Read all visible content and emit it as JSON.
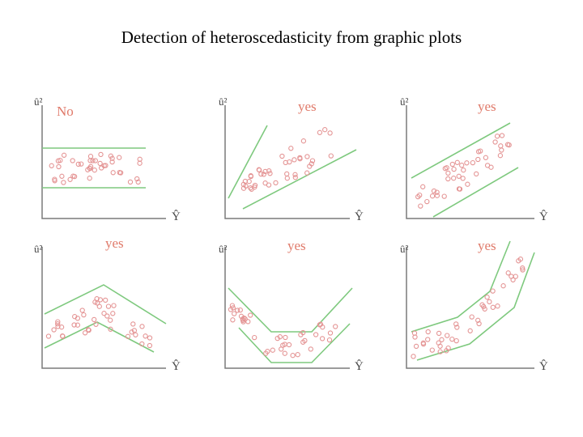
{
  "title": "Detection of heteroscedasticity from graphic plots",
  "colors": {
    "axis": "#7a7a7a",
    "band": "#7ec97e",
    "points": "#e49494",
    "verdict": "#e07a6a"
  },
  "panels": [
    {
      "id": "constant-variance",
      "verdict": "No",
      "y_label": "û²",
      "x_label": "Ŷ"
    },
    {
      "id": "widening-fan",
      "verdict": "yes",
      "y_label": "û²",
      "x_label": "Ŷ"
    },
    {
      "id": "linear-increase",
      "verdict": "yes",
      "y_label": "û²",
      "x_label": "Ŷ"
    },
    {
      "id": "inverted-v",
      "verdict": "yes",
      "y_label": "û²",
      "x_label": "Ŷ"
    },
    {
      "id": "u-shape",
      "verdict": "yes",
      "y_label": "û²",
      "x_label": "Ŷ"
    },
    {
      "id": "exponential-rise",
      "verdict": "yes",
      "y_label": "û²",
      "x_label": "Ŷ"
    }
  ]
}
